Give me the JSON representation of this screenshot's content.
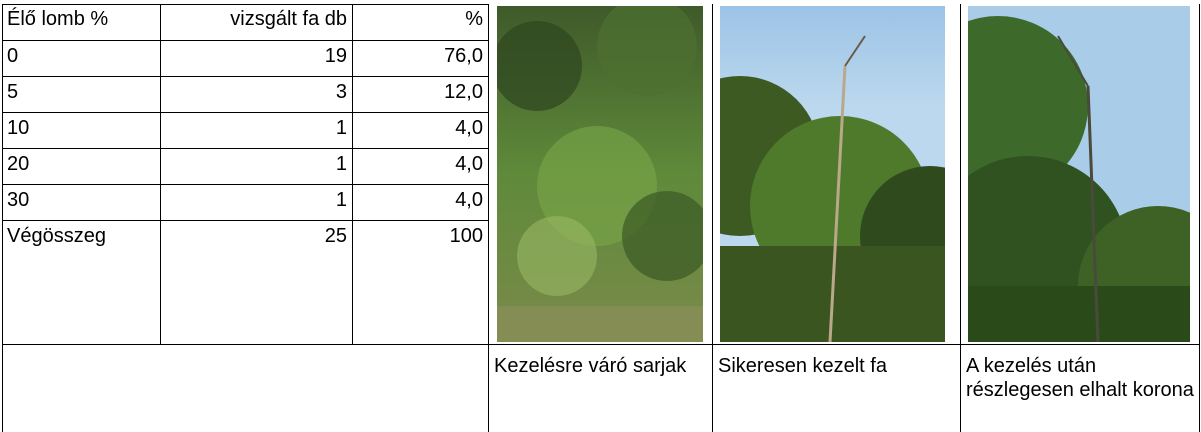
{
  "table": {
    "header": [
      "Élő lomb %",
      "vizsgált fa db",
      "%"
    ],
    "rows": [
      [
        "0",
        "19",
        "76,0"
      ],
      [
        "5",
        "3",
        "12,0"
      ],
      [
        "10",
        "1",
        "4,0"
      ],
      [
        "20",
        "1",
        "4,0"
      ],
      [
        "30",
        "1",
        "4,0"
      ],
      [
        "Végösszeg",
        "25",
        "100"
      ]
    ]
  },
  "photos": [
    {
      "caption": "Kezelésre váró sarjak"
    },
    {
      "caption": "Sikeresen kezelt fa"
    },
    {
      "caption": "A kezelés után részlegesen elhalt korona"
    }
  ]
}
